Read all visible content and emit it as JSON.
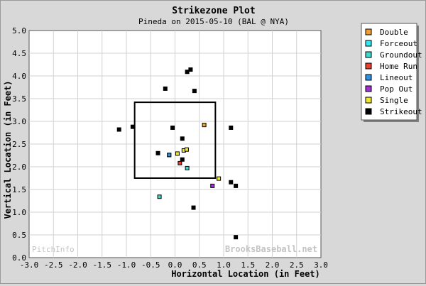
{
  "chart_data": {
    "type": "scatter",
    "title": "Strikezone Plot",
    "subtitle": "Pineda on 2015-05-10 (BAL @ NYA)",
    "xlabel": "Horizontal Location (in Feet)",
    "ylabel": "Vertical Location (in Feet)",
    "xlim": [
      -3.0,
      3.0
    ],
    "ylim": [
      0.0,
      5.0
    ],
    "x_ticks": [
      "-3.0",
      "-2.5",
      "-2.0",
      "-1.5",
      "-1.0",
      "-0.5",
      "0.0",
      "0.5",
      "1.0",
      "1.5",
      "2.0",
      "2.5",
      "3.0"
    ],
    "y_ticks": [
      "0.0",
      "0.5",
      "1.0",
      "1.5",
      "2.0",
      "2.5",
      "3.0",
      "3.5",
      "4.0",
      "4.5",
      "5.0"
    ],
    "grid": true,
    "legend_position": "outside-right",
    "strike_zone": {
      "x": [
        -0.83,
        0.83
      ],
      "y": [
        1.75,
        3.42
      ]
    },
    "watermark_left": "PitchInfo",
    "watermark_right": "BrooksBaseball.net",
    "series": [
      {
        "name": "Double",
        "color": "#f0a030",
        "points": [
          [
            0.6,
            2.92
          ]
        ]
      },
      {
        "name": "Forceout",
        "color": "#30e8f0",
        "points": [
          [
            -0.12,
            2.26
          ]
        ]
      },
      {
        "name": "Groundout",
        "color": "#40d8c8",
        "points": [
          [
            -0.32,
            1.34
          ],
          [
            0.25,
            1.97
          ]
        ]
      },
      {
        "name": "Home Run",
        "color": "#e84030",
        "points": [
          [
            0.1,
            2.08
          ]
        ]
      },
      {
        "name": "Lineout",
        "color": "#3090e0",
        "points": [
          [
            -0.12,
            2.26
          ]
        ]
      },
      {
        "name": "Pop Out",
        "color": "#a030d0",
        "points": [
          [
            0.77,
            1.58
          ]
        ]
      },
      {
        "name": "Single",
        "color": "#f0e830",
        "points": [
          [
            0.05,
            2.29
          ],
          [
            0.18,
            2.36
          ],
          [
            0.24,
            2.38
          ],
          [
            0.9,
            1.74
          ]
        ]
      },
      {
        "name": "Strikeout",
        "color": "#000000",
        "points": [
          [
            0.25,
            4.09
          ],
          [
            0.32,
            4.14
          ],
          [
            -0.2,
            3.72
          ],
          [
            0.4,
            3.67
          ],
          [
            -1.15,
            2.82
          ],
          [
            -0.87,
            2.88
          ],
          [
            -0.05,
            2.86
          ],
          [
            0.15,
            2.62
          ],
          [
            1.15,
            2.86
          ],
          [
            -0.35,
            2.3
          ],
          [
            0.15,
            2.16
          ],
          [
            1.15,
            1.66
          ],
          [
            1.25,
            1.58
          ],
          [
            0.38,
            1.1
          ],
          [
            1.25,
            0.45
          ]
        ]
      }
    ]
  }
}
